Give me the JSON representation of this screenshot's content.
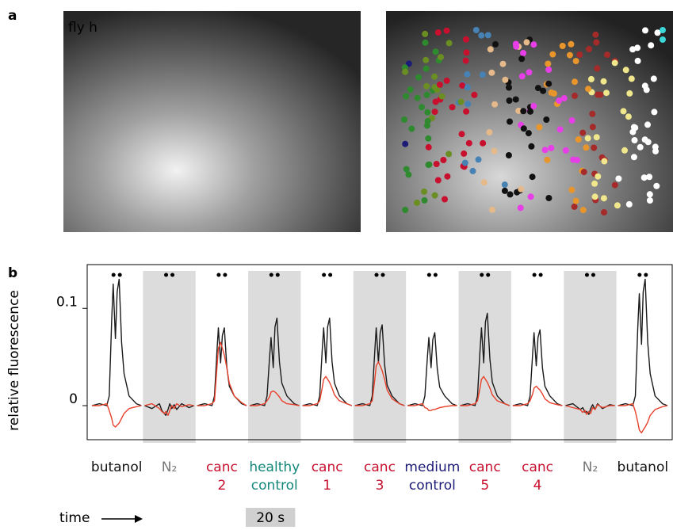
{
  "panel_a": {
    "label": "a",
    "image_label": "fly h"
  },
  "chart_data": {
    "type": "line",
    "panel_label": "b",
    "ylabel": "relative fluorescence",
    "ylim": [
      -0.035,
      0.145
    ],
    "yticks": [
      0,
      0.1
    ],
    "x": [
      0,
      3,
      6,
      7,
      8,
      8.6,
      9.5,
      10.2,
      11,
      12,
      13,
      15,
      18,
      20
    ],
    "xlim": [
      0,
      20
    ],
    "categories": [
      "butanol",
      "N₂",
      "canc 2",
      "healthy control",
      "canc 1",
      "canc 3",
      "medium control",
      "canc 5",
      "canc 4",
      "N₂",
      "butanol"
    ],
    "category_colors": [
      "#111111",
      "#777777",
      "#c8102e",
      "#12877a",
      "#c8102e",
      "#c8102e",
      "#1c1c78",
      "#c8102e",
      "#c8102e",
      "#777777",
      "#111111"
    ],
    "shaded": [
      false,
      true,
      false,
      true,
      false,
      true,
      false,
      true,
      false,
      true,
      false
    ],
    "series": [
      {
        "color": "#1a1a1a",
        "values": [
          [
            0,
            0.002,
            0,
            0.01,
            0.088,
            0.125,
            0.069,
            0.117,
            0.13,
            0.065,
            0.033,
            0.01,
            0.002,
            0
          ],
          [
            0,
            -0.003,
            0.002,
            -0.005,
            -0.008,
            -0.01,
            -0.004,
            0.002,
            -0.003,
            0.001,
            -0.004,
            0.002,
            -0.002,
            0
          ],
          [
            0,
            0.002,
            0,
            0.01,
            0.056,
            0.08,
            0.044,
            0.072,
            0.08,
            0.04,
            0.02,
            0.01,
            0.002,
            0
          ],
          [
            0,
            0.002,
            0,
            0.01,
            0.049,
            0.07,
            0.039,
            0.081,
            0.09,
            0.045,
            0.023,
            0.01,
            0.002,
            0
          ],
          [
            0,
            0.002,
            0,
            0.01,
            0.056,
            0.08,
            0.044,
            0.081,
            0.09,
            0.045,
            0.023,
            0.01,
            0.002,
            0
          ],
          [
            0,
            0.002,
            0,
            0.01,
            0.056,
            0.08,
            0.044,
            0.075,
            0.083,
            0.042,
            0.021,
            0.01,
            0.002,
            0
          ],
          [
            0,
            0.002,
            0,
            0.01,
            0.049,
            0.07,
            0.039,
            0.068,
            0.075,
            0.038,
            0.019,
            0.01,
            0.002,
            0
          ],
          [
            0,
            0.002,
            0,
            0.01,
            0.056,
            0.08,
            0.044,
            0.086,
            0.095,
            0.048,
            0.024,
            0.01,
            0.002,
            0
          ],
          [
            0,
            0.002,
            0,
            0.01,
            0.053,
            0.075,
            0.041,
            0.07,
            0.078,
            0.039,
            0.02,
            0.01,
            0.002,
            0
          ],
          [
            0,
            0.002,
            -0.004,
            -0.002,
            -0.007,
            -0.006,
            -0.009,
            -0.003,
            0.001,
            -0.004,
            0.002,
            -0.003,
            0.001,
            0
          ],
          [
            0,
            0.002,
            0,
            0.01,
            0.081,
            0.115,
            0.063,
            0.117,
            0.13,
            0.065,
            0.033,
            0.01,
            0.002,
            0
          ]
        ]
      },
      {
        "color": "#e8412c",
        "values": [
          [
            0,
            0,
            0.002,
            -0.005,
            -0.013,
            -0.02,
            -0.022,
            -0.02,
            -0.018,
            -0.013,
            -0.008,
            -0.003,
            -0.001,
            0
          ],
          [
            0,
            0.002,
            -0.003,
            -0.006,
            -0.008,
            -0.006,
            -0.01,
            -0.005,
            0,
            -0.003,
            0.002,
            -0.001,
            0.001,
            0
          ],
          [
            0,
            0,
            0.002,
            0.005,
            0.039,
            0.059,
            0.065,
            0.059,
            0.052,
            0.039,
            0.023,
            0.01,
            0.003,
            0
          ],
          [
            0,
            0,
            0.002,
            0.005,
            0.009,
            0.014,
            0.015,
            0.014,
            0.012,
            0.009,
            0.005,
            0.002,
            0.001,
            0
          ],
          [
            0,
            0,
            0.002,
            0.005,
            0.018,
            0.027,
            0.03,
            0.027,
            0.024,
            0.018,
            0.011,
            0.005,
            0.002,
            0
          ],
          [
            0,
            0,
            0.002,
            0.005,
            0.027,
            0.041,
            0.045,
            0.041,
            0.036,
            0.027,
            0.016,
            0.007,
            0.002,
            0
          ],
          [
            0,
            0,
            0.002,
            -0.002,
            -0.003,
            -0.005,
            -0.005,
            -0.004,
            -0.004,
            -0.003,
            -0.002,
            -0.001,
            0,
            0
          ],
          [
            0,
            0,
            0.002,
            0.005,
            0.018,
            0.027,
            0.03,
            0.027,
            0.024,
            0.018,
            0.011,
            0.005,
            0.002,
            0
          ],
          [
            0,
            0,
            0.002,
            0.005,
            0.012,
            0.018,
            0.02,
            0.018,
            0.016,
            0.012,
            0.007,
            0.003,
            0.001,
            0
          ],
          [
            0,
            -0.002,
            -0.004,
            -0.007,
            -0.005,
            -0.009,
            -0.006,
            -0.008,
            -0.002,
            -0.004,
            0.001,
            -0.002,
            0,
            0
          ],
          [
            0,
            0,
            0.002,
            -0.006,
            -0.017,
            -0.025,
            -0.028,
            -0.025,
            -0.022,
            -0.017,
            -0.01,
            -0.004,
            -0.001,
            0
          ]
        ]
      }
    ],
    "time_label": "time",
    "scale_bar_label": "20 s"
  }
}
